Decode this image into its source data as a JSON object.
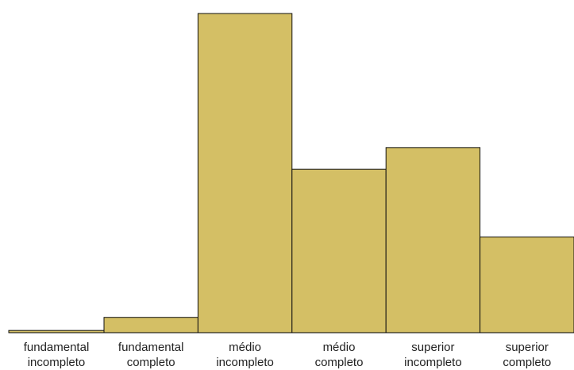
{
  "chart_data": {
    "type": "bar",
    "title": "",
    "xlabel": "",
    "ylabel": "",
    "categories": [
      [
        "fundamental",
        "incompleto"
      ],
      [
        "fundamental",
        "completo"
      ],
      [
        "médio",
        "incompleto"
      ],
      [
        "médio",
        "completo"
      ],
      [
        "superior",
        "incompleto"
      ],
      [
        "superior",
        "completo"
      ]
    ],
    "values": [
      0.7,
      4.8,
      100,
      51.2,
      58.0,
      30.0
    ],
    "ylim": [
      0,
      100
    ],
    "grid": false,
    "legend": "none",
    "colors": {
      "bar_fill": "#d4bf65",
      "bar_stroke": "#111111",
      "baseline": "#000000"
    }
  }
}
